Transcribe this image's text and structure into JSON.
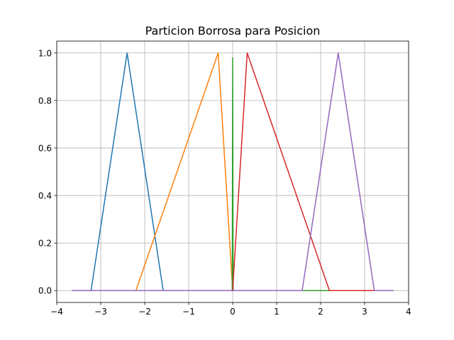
{
  "chart_data": {
    "type": "line",
    "title": "Particion Borrosa para Posicion",
    "xlabel": "",
    "ylabel": "",
    "xlim": [
      -4,
      4
    ],
    "ylim": [
      -0.05,
      1.05
    ],
    "grid": true,
    "x_ticks": [
      -4,
      -3,
      -2,
      -1,
      0,
      1,
      2,
      3,
      4
    ],
    "x_tick_labels": [
      "−4",
      "−3",
      "−2",
      "−1",
      "0",
      "1",
      "2",
      "3",
      "4"
    ],
    "y_ticks": [
      0.0,
      0.2,
      0.4,
      0.6,
      0.8,
      1.0
    ],
    "y_tick_labels": [
      "0.0",
      "0.2",
      "0.4",
      "0.6",
      "0.8",
      "1.0"
    ],
    "series": [
      {
        "color": "#1f77b4",
        "points": [
          [
            -3.66,
            0
          ],
          [
            -3.22,
            0
          ],
          [
            -2.4,
            1
          ],
          [
            -1.58,
            0
          ],
          [
            3.66,
            0
          ]
        ]
      },
      {
        "color": "#ff7f0e",
        "points": [
          [
            -3.66,
            0
          ],
          [
            -2.2,
            0
          ],
          [
            -0.33,
            1
          ],
          [
            0,
            0
          ],
          [
            3.66,
            0
          ]
        ]
      },
      {
        "color": "#2ca02c",
        "points": [
          [
            -3.66,
            0
          ],
          [
            -0.01,
            0
          ],
          [
            0,
            0.98
          ],
          [
            0.01,
            0
          ],
          [
            3.66,
            0
          ]
        ]
      },
      {
        "color": "#d62728",
        "points": [
          [
            -3.66,
            0
          ],
          [
            0,
            0
          ],
          [
            0.33,
            1
          ],
          [
            2.2,
            0
          ],
          [
            3.66,
            0
          ]
        ]
      },
      {
        "color": "#9467bd",
        "points": [
          [
            -3.66,
            0
          ],
          [
            1.58,
            0
          ],
          [
            2.4,
            1
          ],
          [
            3.22,
            0
          ],
          [
            3.66,
            0
          ]
        ]
      }
    ]
  }
}
